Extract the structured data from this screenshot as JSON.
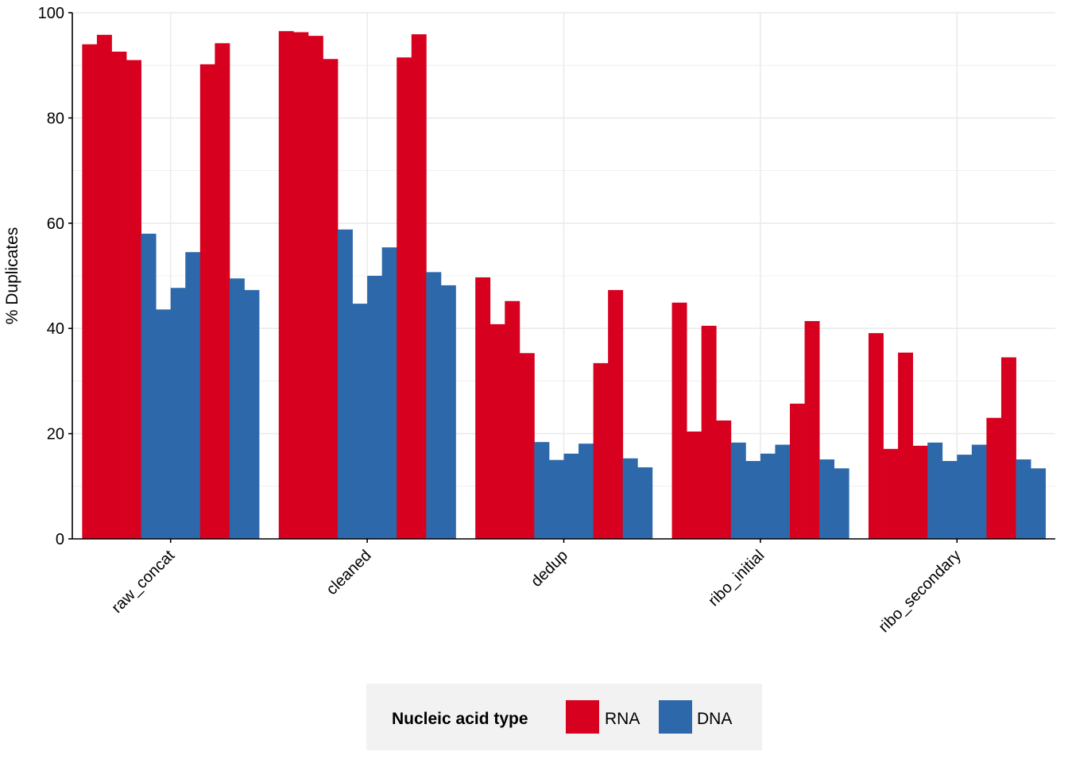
{
  "colors": {
    "RNA": "#d7001f",
    "DNA": "#2d69aa",
    "grid": "#ebebeb",
    "legend_background": "#f2f2f2"
  },
  "chart_data": {
    "type": "bar",
    "ylabel": "% Duplicates",
    "ylim": [
      0,
      100
    ],
    "yticks": [
      0,
      20,
      40,
      60,
      80,
      100
    ],
    "grid": true,
    "legend_position": "bottom",
    "legend": {
      "title": "Nucleic acid type",
      "entries": [
        "RNA",
        "DNA"
      ]
    },
    "categories": [
      "raw_concat",
      "cleaned",
      "dedup",
      "ribo_initial",
      "ribo_secondary"
    ],
    "bar_types": [
      "RNA",
      "RNA",
      "RNA",
      "RNA",
      "DNA",
      "DNA",
      "DNA",
      "DNA",
      "RNA",
      "RNA",
      "DNA",
      "DNA"
    ],
    "values": [
      [
        94.0,
        95.8,
        92.6,
        91.0,
        58.0,
        43.6,
        47.7,
        54.5,
        90.2,
        94.2,
        49.5,
        47.3
      ],
      [
        96.5,
        96.3,
        95.6,
        91.2,
        58.8,
        44.7,
        50.0,
        55.4,
        91.5,
        95.9,
        50.7,
        48.2
      ],
      [
        49.7,
        40.8,
        45.2,
        35.3,
        18.4,
        15.0,
        16.2,
        18.1,
        33.4,
        47.3,
        15.3,
        13.6
      ],
      [
        44.9,
        20.4,
        40.5,
        22.5,
        18.3,
        14.8,
        16.2,
        17.9,
        25.7,
        41.4,
        15.1,
        13.4
      ],
      [
        39.1,
        17.1,
        35.4,
        17.7,
        18.3,
        14.8,
        16.0,
        17.9,
        23.0,
        34.5,
        15.1,
        13.4
      ]
    ]
  }
}
